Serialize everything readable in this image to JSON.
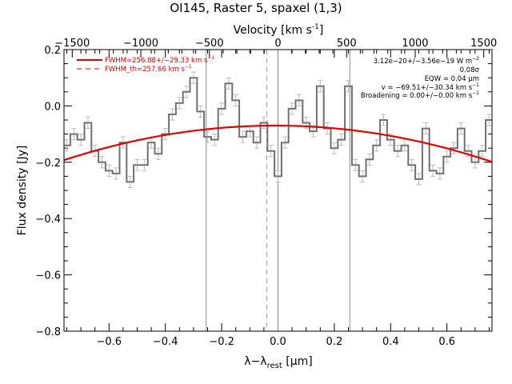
{
  "chart_data": {
    "type": "line",
    "title": "OI145, Raster 5, spaxel (1,3)",
    "xlabel": "λ−λ",
    "xlabel_sub": "rest",
    "xlabel_unit": " [μm]",
    "ylabel": "Flux density [Jy]",
    "top_axis_label": "Velocity [km s",
    "top_axis_label_sup": "-1",
    "top_axis_label_end": "]",
    "xlim": [
      -0.76,
      0.76
    ],
    "ylim": [
      -0.8,
      0.2
    ],
    "top_xlim": [
      -1560,
      1560
    ],
    "x_ticks": [
      -0.6,
      -0.4,
      -0.2,
      0.0,
      0.2,
      0.4,
      0.6
    ],
    "x_tick_labels": [
      "−0.6",
      "−0.4",
      "−0.2",
      "0.0",
      "0.2",
      "0.4",
      "0.6"
    ],
    "y_ticks": [
      -0.8,
      -0.6,
      -0.4,
      -0.2,
      0.0,
      0.2
    ],
    "y_tick_labels": [
      "−0.8",
      "−0.6",
      "−0.4",
      "−0.2",
      "0.0",
      "0.2"
    ],
    "top_ticks": [
      -1500,
      -1000,
      -500,
      0,
      500,
      1000,
      1500
    ],
    "top_tick_labels": [
      "−1500",
      "−1000",
      "−500",
      "0",
      "500",
      "1000",
      "1500"
    ],
    "vertical_lines": [
      -0.255,
      0.0,
      0.255
    ],
    "dashed_vertical_line": -0.04,
    "spectrum": {
      "color": "#707070",
      "x": [
        -0.75,
        -0.725,
        -0.7,
        -0.675,
        -0.65,
        -0.625,
        -0.6,
        -0.575,
        -0.55,
        -0.525,
        -0.5,
        -0.475,
        -0.45,
        -0.425,
        -0.4,
        -0.375,
        -0.35,
        -0.325,
        -0.3,
        -0.275,
        -0.25,
        -0.225,
        -0.2,
        -0.175,
        -0.15,
        -0.125,
        -0.1,
        -0.075,
        -0.05,
        -0.025,
        0.0,
        0.025,
        0.05,
        0.075,
        0.1,
        0.125,
        0.15,
        0.175,
        0.2,
        0.225,
        0.25,
        0.275,
        0.3,
        0.325,
        0.35,
        0.375,
        0.4,
        0.425,
        0.45,
        0.475,
        0.5,
        0.525,
        0.55,
        0.575,
        0.6,
        0.625,
        0.65,
        0.675,
        0.7,
        0.725,
        0.75
      ],
      "y": [
        -0.14,
        -0.1,
        -0.12,
        -0.06,
        -0.16,
        -0.2,
        -0.23,
        -0.24,
        -0.13,
        -0.27,
        -0.21,
        -0.21,
        -0.13,
        -0.17,
        -0.1,
        -0.03,
        0.01,
        0.05,
        0.1,
        -0.02,
        -0.11,
        -0.12,
        -0.01,
        0.08,
        0.02,
        -0.11,
        -0.09,
        -0.13,
        -0.06,
        -0.16,
        -0.25,
        -0.13,
        -0.01,
        0.02,
        -0.06,
        -0.09,
        0.07,
        -0.08,
        -0.15,
        -0.12,
        0.07,
        -0.21,
        -0.25,
        -0.19,
        -0.14,
        -0.05,
        -0.12,
        -0.16,
        -0.14,
        -0.21,
        -0.26,
        -0.08,
        -0.23,
        -0.24,
        -0.18,
        -0.15,
        -0.08,
        -0.16,
        -0.2,
        -0.16,
        -0.05
      ],
      "errors": [
        0.02,
        0.02,
        0.02,
        0.02,
        0.02,
        0.02,
        0.02,
        0.02,
        0.02,
        0.02,
        0.02,
        0.02,
        0.02,
        0.02,
        0.02,
        0.02,
        0.02,
        0.02,
        0.02,
        0.02,
        0.02,
        0.02,
        0.02,
        0.02,
        0.02,
        0.02,
        0.02,
        0.02,
        0.02,
        0.02,
        0.02,
        0.02,
        0.02,
        0.02,
        0.02,
        0.02,
        0.02,
        0.02,
        0.02,
        0.02,
        0.02,
        0.02,
        0.02,
        0.02,
        0.02,
        0.02,
        0.02,
        0.02,
        0.02,
        0.02,
        0.02,
        0.02,
        0.02,
        0.02,
        0.02,
        0.02,
        0.02,
        0.02,
        0.02,
        0.02,
        0.02
      ]
    },
    "fit": {
      "color": "#e00000",
      "center": -0.0095,
      "peak": -0.07,
      "curvature": 0.2175
    },
    "legend": {
      "placement": "top-left",
      "color": "#e00000",
      "entries": [
        {
          "label": "FWHM=256.88+/−29.33 km s",
          "sup": "−1",
          "style": "solid"
        },
        {
          "label": "FWHM_th=257.66 km s",
          "sup": "−1",
          "style": "dashed"
        }
      ]
    },
    "annotations": [
      {
        "text": "3.12e−20+/−3.56e−19 W m",
        "sup": "−2"
      },
      {
        "text": "0.08σ",
        "sup": ""
      },
      {
        "text": "EQW = 0.04 μm",
        "sup": ""
      },
      {
        "text": "v = −69.51+/−30.34 km s",
        "sup": "−1"
      },
      {
        "text": "Broadening = 0.00+/−0.00 km s",
        "sup": "−1"
      }
    ]
  }
}
